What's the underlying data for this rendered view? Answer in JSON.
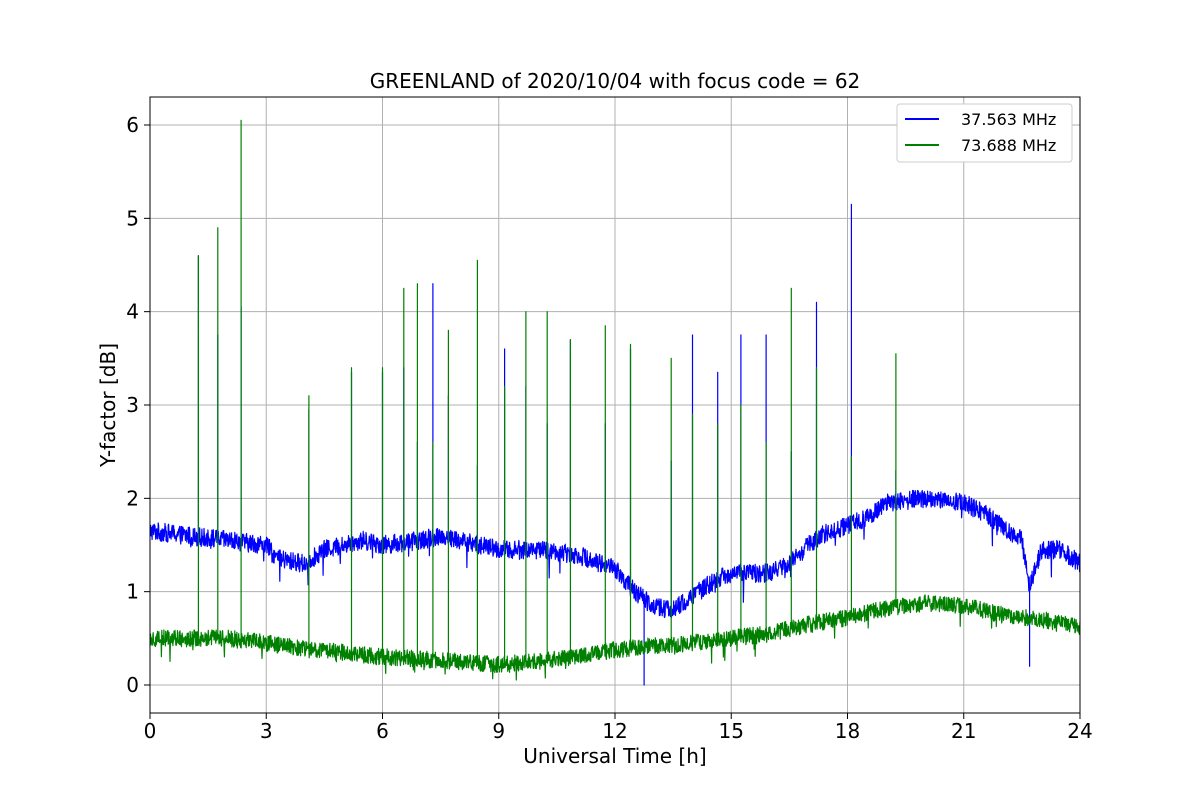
{
  "chart_data": {
    "type": "line",
    "title": "GREENLAND of 2020/10/04 with focus code = 62",
    "xlabel": "Universal Time [h]",
    "ylabel": "Y-factor [dB]",
    "xlim": [
      0,
      24
    ],
    "ylim": [
      -0.3,
      6.3
    ],
    "xticks": [
      0,
      3,
      6,
      9,
      12,
      15,
      18,
      21,
      24
    ],
    "yticks": [
      0,
      1,
      2,
      3,
      4,
      5,
      6
    ],
    "grid": true,
    "legend_position": "top-right",
    "series": [
      {
        "name": "37.563 MHz",
        "color": "#0000ff",
        "baseline": [
          [
            0,
            1.65
          ],
          [
            1,
            1.6
          ],
          [
            2,
            1.55
          ],
          [
            3,
            1.5
          ],
          [
            3.3,
            1.35
          ],
          [
            4,
            1.3
          ],
          [
            4.5,
            1.45
          ],
          [
            5.5,
            1.55
          ],
          [
            6,
            1.5
          ],
          [
            7,
            1.55
          ],
          [
            7.5,
            1.6
          ],
          [
            8,
            1.55
          ],
          [
            9,
            1.45
          ],
          [
            10,
            1.45
          ],
          [
            11,
            1.4
          ],
          [
            12,
            1.25
          ],
          [
            12.5,
            1.0
          ],
          [
            13,
            0.85
          ],
          [
            13.5,
            0.8
          ],
          [
            14,
            0.95
          ],
          [
            14.5,
            1.1
          ],
          [
            15,
            1.2
          ],
          [
            16,
            1.2
          ],
          [
            16.5,
            1.3
          ],
          [
            17,
            1.5
          ],
          [
            17.5,
            1.65
          ],
          [
            18,
            1.7
          ],
          [
            18.5,
            1.8
          ],
          [
            19,
            1.95
          ],
          [
            20,
            2.0
          ],
          [
            21,
            1.95
          ],
          [
            21.5,
            1.85
          ],
          [
            22,
            1.7
          ],
          [
            22.5,
            1.55
          ],
          [
            22.7,
            1.05
          ],
          [
            23,
            1.45
          ],
          [
            23.5,
            1.45
          ],
          [
            24,
            1.3
          ]
        ],
        "noise": 0.1,
        "spikes": [
          [
            1.25,
            4.6
          ],
          [
            1.75,
            3.75
          ],
          [
            2.35,
            4.05
          ],
          [
            4.1,
            2.95
          ],
          [
            5.2,
            3.35
          ],
          [
            6.0,
            3.35
          ],
          [
            6.55,
            3.4
          ],
          [
            6.9,
            2.6
          ],
          [
            7.3,
            4.3
          ],
          [
            7.7,
            3.1
          ],
          [
            8.45,
            2.35
          ],
          [
            9.15,
            3.6
          ],
          [
            9.7,
            3.2
          ],
          [
            10.25,
            2.8
          ],
          [
            10.85,
            3.7
          ],
          [
            11.75,
            2.8
          ],
          [
            12.4,
            3.6
          ],
          [
            12.75,
            0.0
          ],
          [
            13.45,
            2.4
          ],
          [
            14.0,
            3.75
          ],
          [
            14.65,
            3.35
          ],
          [
            15.25,
            3.75
          ],
          [
            15.9,
            3.75
          ],
          [
            16.55,
            2.5
          ],
          [
            17.2,
            4.1
          ],
          [
            18.1,
            5.15
          ],
          [
            19.25,
            2.3
          ],
          [
            22.7,
            0.2
          ]
        ]
      },
      {
        "name": "73.688 MHz",
        "color": "#008000",
        "baseline": [
          [
            0,
            0.5
          ],
          [
            1,
            0.5
          ],
          [
            2,
            0.5
          ],
          [
            3,
            0.45
          ],
          [
            4,
            0.38
          ],
          [
            5,
            0.35
          ],
          [
            6,
            0.3
          ],
          [
            7,
            0.28
          ],
          [
            8,
            0.25
          ],
          [
            9,
            0.22
          ],
          [
            10,
            0.25
          ],
          [
            11,
            0.3
          ],
          [
            12,
            0.38
          ],
          [
            13,
            0.42
          ],
          [
            14,
            0.45
          ],
          [
            15,
            0.5
          ],
          [
            16,
            0.55
          ],
          [
            17,
            0.65
          ],
          [
            18,
            0.72
          ],
          [
            19,
            0.82
          ],
          [
            20,
            0.88
          ],
          [
            21,
            0.85
          ],
          [
            22,
            0.75
          ],
          [
            23,
            0.7
          ],
          [
            24,
            0.62
          ]
        ],
        "noise": 0.09,
        "spikes": [
          [
            1.25,
            4.6
          ],
          [
            1.75,
            4.9
          ],
          [
            2.35,
            6.05
          ],
          [
            4.1,
            3.1
          ],
          [
            5.2,
            3.4
          ],
          [
            6.0,
            3.4
          ],
          [
            6.55,
            4.25
          ],
          [
            6.9,
            4.3
          ],
          [
            7.3,
            2.6
          ],
          [
            7.7,
            3.8
          ],
          [
            8.45,
            4.55
          ],
          [
            9.15,
            3.2
          ],
          [
            9.7,
            4.0
          ],
          [
            10.25,
            4.0
          ],
          [
            10.85,
            3.7
          ],
          [
            11.75,
            3.85
          ],
          [
            12.4,
            3.65
          ],
          [
            13.45,
            3.5
          ],
          [
            14.0,
            2.9
          ],
          [
            14.65,
            2.8
          ],
          [
            15.25,
            3.0
          ],
          [
            15.9,
            2.6
          ],
          [
            16.55,
            4.25
          ],
          [
            17.2,
            3.4
          ],
          [
            18.1,
            2.45
          ],
          [
            19.25,
            3.55
          ]
        ]
      }
    ]
  }
}
